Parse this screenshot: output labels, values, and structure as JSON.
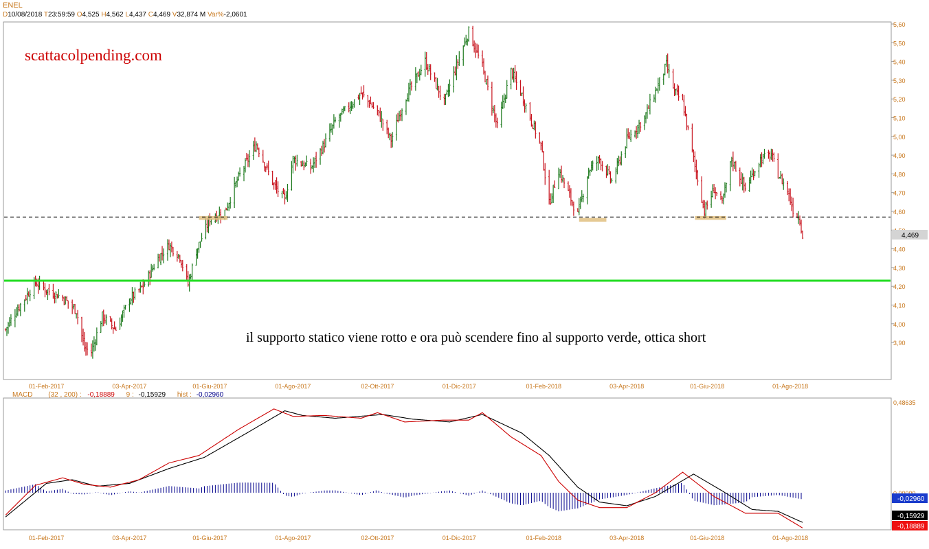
{
  "header": {
    "symbol": "ENEL",
    "d_label": "D",
    "date": "10/08/2018",
    "t_label": "T",
    "time": "23:59:59",
    "o_label": "O",
    "open": "4,525",
    "h_label": "H",
    "high": "4,562",
    "l_label": "L",
    "low": "4,437",
    "c_label": "C",
    "close": "4,469",
    "v_label": "V",
    "volume": "32,874 M",
    "var_label": "Var%",
    "var": "-2,0601"
  },
  "watermark": "scattacolpending.com",
  "annotation": "il supporto statico viene rotto e ora può scendere fino al supporto verde, ottica short",
  "price_badge": "4,469",
  "macd_header": {
    "name": "MACD",
    "params": "(32 , 200) :",
    "macd_value": "-0,18889",
    "signal_label": "9 :",
    "signal_value": "-0,15929",
    "hist_label": "hist :",
    "hist_value": "-0,02960"
  },
  "colors": {
    "up": "#1e7a1e",
    "down": "#c8141e",
    "support_green": "#22dd22",
    "support_box": "#e0c080",
    "macd_red": "#cc0000",
    "hist_blue": "#00008b",
    "axis_text": "#c8781e",
    "watermark": "#cc0000"
  },
  "chart_data": [
    {
      "type": "candlestick",
      "title": "ENEL",
      "x_tick_labels": [
        "01-Feb-2017",
        "03-Apr-2017",
        "01-Giu-2017",
        "01-Ago-2017",
        "02-Ott-2017",
        "01-Dic-2017",
        "01-Feb-2018",
        "03-Apr-2018",
        "01-Giu-2018",
        "01-Ago-2018"
      ],
      "y_tick_labels": [
        "3,90",
        "4,00",
        "4,10",
        "4,20",
        "4,30",
        "4,40",
        "4,50",
        "4,60",
        "4,70",
        "4,80",
        "4,90",
        "5,00",
        "5,10",
        "5,20",
        "5,30",
        "5,40",
        "5,50",
        "5,60"
      ],
      "ylim": [
        3.78,
        5.62
      ],
      "grid": false,
      "last_close": 4.469,
      "close_path": [
        {
          "date": "2017-01-02",
          "close": 3.97
        },
        {
          "date": "2017-01-10",
          "close": 4.07
        },
        {
          "date": "2017-01-24",
          "close": 4.22
        },
        {
          "date": "2017-02-01",
          "close": 4.18
        },
        {
          "date": "2017-02-13",
          "close": 4.14
        },
        {
          "date": "2017-02-23",
          "close": 4.07
        },
        {
          "date": "2017-03-01",
          "close": 3.87
        },
        {
          "date": "2017-03-06",
          "close": 3.85
        },
        {
          "date": "2017-03-14",
          "close": 4.04
        },
        {
          "date": "2017-03-24",
          "close": 3.97
        },
        {
          "date": "2017-04-03",
          "close": 4.13
        },
        {
          "date": "2017-04-13",
          "close": 4.2
        },
        {
          "date": "2017-04-24",
          "close": 4.35
        },
        {
          "date": "2017-05-02",
          "close": 4.42
        },
        {
          "date": "2017-05-10",
          "close": 4.36
        },
        {
          "date": "2017-05-16",
          "close": 4.21
        },
        {
          "date": "2017-05-22",
          "close": 4.39
        },
        {
          "date": "2017-06-01",
          "close": 4.56
        },
        {
          "date": "2017-06-12",
          "close": 4.6
        },
        {
          "date": "2017-06-22",
          "close": 4.78
        },
        {
          "date": "2017-07-05",
          "close": 4.96
        },
        {
          "date": "2017-07-18",
          "close": 4.74
        },
        {
          "date": "2017-07-26",
          "close": 4.66
        },
        {
          "date": "2017-08-01",
          "close": 4.88
        },
        {
          "date": "2017-08-14",
          "close": 4.83
        },
        {
          "date": "2017-08-24",
          "close": 4.96
        },
        {
          "date": "2017-09-01",
          "close": 5.08
        },
        {
          "date": "2017-09-20",
          "close": 5.23
        },
        {
          "date": "2017-10-02",
          "close": 5.13
        },
        {
          "date": "2017-10-12",
          "close": 4.98
        },
        {
          "date": "2017-10-22",
          "close": 5.2
        },
        {
          "date": "2017-11-06",
          "close": 5.4
        },
        {
          "date": "2017-11-20",
          "close": 5.18
        },
        {
          "date": "2017-12-01",
          "close": 5.42
        },
        {
          "date": "2017-12-08",
          "close": 5.56
        },
        {
          "date": "2017-12-18",
          "close": 5.37
        },
        {
          "date": "2017-12-29",
          "close": 5.05
        },
        {
          "date": "2018-01-08",
          "close": 5.35
        },
        {
          "date": "2018-01-16",
          "close": 5.22
        },
        {
          "date": "2018-01-30",
          "close": 4.95
        },
        {
          "date": "2018-02-05",
          "close": 4.64
        },
        {
          "date": "2018-02-12",
          "close": 4.82
        },
        {
          "date": "2018-02-26",
          "close": 4.58
        },
        {
          "date": "2018-03-06",
          "close": 4.82
        },
        {
          "date": "2018-03-14",
          "close": 4.88
        },
        {
          "date": "2018-03-23",
          "close": 4.76
        },
        {
          "date": "2018-04-03",
          "close": 4.98
        },
        {
          "date": "2018-04-16",
          "close": 5.1
        },
        {
          "date": "2018-05-02",
          "close": 5.38
        },
        {
          "date": "2018-05-08",
          "close": 5.24
        },
        {
          "date": "2018-05-14",
          "close": 5.18
        },
        {
          "date": "2018-05-22",
          "close": 4.88
        },
        {
          "date": "2018-05-30",
          "close": 4.6
        },
        {
          "date": "2018-06-06",
          "close": 4.72
        },
        {
          "date": "2018-06-12",
          "close": 4.64
        },
        {
          "date": "2018-06-19",
          "close": 4.88
        },
        {
          "date": "2018-06-29",
          "close": 4.72
        },
        {
          "date": "2018-07-10",
          "close": 4.88
        },
        {
          "date": "2018-07-18",
          "close": 4.9
        },
        {
          "date": "2018-07-23",
          "close": 4.8
        },
        {
          "date": "2018-07-30",
          "close": 4.71
        },
        {
          "date": "2018-08-03",
          "close": 4.61
        },
        {
          "date": "2018-08-08",
          "close": 4.56
        },
        {
          "date": "2018-08-10",
          "close": 4.469
        }
      ],
      "lines": [
        {
          "label": "supporto statico",
          "style": "dashed",
          "y": 4.57
        },
        {
          "label": "supporto verde",
          "style": "solid",
          "y": 4.23
        }
      ],
      "support_boxes": [
        {
          "from": "2017-05-24",
          "to": "2017-06-14",
          "y_low": 4.555,
          "y_high": 4.575
        },
        {
          "from": "2018-02-27",
          "to": "2018-03-19",
          "y_low": 4.545,
          "y_high": 4.565
        },
        {
          "from": "2018-05-23",
          "to": "2018-06-15",
          "y_low": 4.555,
          "y_high": 4.575
        }
      ]
    },
    {
      "type": "line",
      "title": "MACD",
      "x_tick_labels": [
        "01-Feb-2017",
        "03-Apr-2017",
        "01-Giu-2017",
        "01-Ago-2017",
        "02-Ott-2017",
        "01-Dic-2017",
        "01-Feb-2018",
        "03-Apr-2018",
        "01-Giu-2018",
        "01-Ago-2018"
      ],
      "y_tick_labels": [
        "0,48635",
        "0,00000"
      ],
      "value_badges": [
        "-0,02960",
        "-0,15929",
        "-0,18889"
      ],
      "ylim": [
        -0.2,
        0.48635
      ],
      "series": [
        {
          "name": "MACD",
          "color": "red",
          "points": [
            {
              "date": "2017-01-02",
              "v": -0.12
            },
            {
              "date": "2017-01-24",
              "v": 0.04
            },
            {
              "date": "2017-02-13",
              "v": 0.08
            },
            {
              "date": "2017-03-01",
              "v": 0.045
            },
            {
              "date": "2017-03-20",
              "v": 0.03
            },
            {
              "date": "2017-04-10",
              "v": 0.07
            },
            {
              "date": "2017-05-02",
              "v": 0.16
            },
            {
              "date": "2017-05-24",
              "v": 0.2
            },
            {
              "date": "2017-06-22",
              "v": 0.34
            },
            {
              "date": "2017-07-18",
              "v": 0.45
            },
            {
              "date": "2017-08-01",
              "v": 0.41
            },
            {
              "date": "2017-08-24",
              "v": 0.415
            },
            {
              "date": "2017-09-20",
              "v": 0.4
            },
            {
              "date": "2017-10-02",
              "v": 0.43
            },
            {
              "date": "2017-10-22",
              "v": 0.38
            },
            {
              "date": "2017-11-20",
              "v": 0.39
            },
            {
              "date": "2017-12-08",
              "v": 0.39
            },
            {
              "date": "2017-12-18",
              "v": 0.43
            },
            {
              "date": "2018-01-08",
              "v": 0.3
            },
            {
              "date": "2018-01-30",
              "v": 0.2
            },
            {
              "date": "2018-02-12",
              "v": 0.06
            },
            {
              "date": "2018-02-26",
              "v": -0.04
            },
            {
              "date": "2018-03-14",
              "v": -0.08
            },
            {
              "date": "2018-04-03",
              "v": -0.08
            },
            {
              "date": "2018-04-24",
              "v": 0.0
            },
            {
              "date": "2018-05-14",
              "v": 0.11
            },
            {
              "date": "2018-06-06",
              "v": -0.02
            },
            {
              "date": "2018-06-29",
              "v": -0.11
            },
            {
              "date": "2018-07-23",
              "v": -0.11
            },
            {
              "date": "2018-08-10",
              "v": -0.18889
            }
          ]
        },
        {
          "name": "Signal",
          "color": "black",
          "points": [
            {
              "date": "2017-01-02",
              "v": -0.13
            },
            {
              "date": "2017-02-01",
              "v": 0.05
            },
            {
              "date": "2017-02-20",
              "v": 0.07
            },
            {
              "date": "2017-03-10",
              "v": 0.035
            },
            {
              "date": "2017-04-03",
              "v": 0.05
            },
            {
              "date": "2017-05-02",
              "v": 0.13
            },
            {
              "date": "2017-05-28",
              "v": 0.19
            },
            {
              "date": "2017-06-28",
              "v": 0.32
            },
            {
              "date": "2017-07-26",
              "v": 0.44
            },
            {
              "date": "2017-08-08",
              "v": 0.415
            },
            {
              "date": "2017-09-01",
              "v": 0.4
            },
            {
              "date": "2017-10-06",
              "v": 0.42
            },
            {
              "date": "2017-10-28",
              "v": 0.395
            },
            {
              "date": "2017-11-24",
              "v": 0.38
            },
            {
              "date": "2017-12-18",
              "v": 0.42
            },
            {
              "date": "2018-01-16",
              "v": 0.32
            },
            {
              "date": "2018-02-05",
              "v": 0.2
            },
            {
              "date": "2018-02-26",
              "v": 0.03
            },
            {
              "date": "2018-03-14",
              "v": -0.05
            },
            {
              "date": "2018-04-03",
              "v": -0.07
            },
            {
              "date": "2018-04-24",
              "v": -0.02
            },
            {
              "date": "2018-05-22",
              "v": 0.1
            },
            {
              "date": "2018-06-12",
              "v": 0.01
            },
            {
              "date": "2018-07-04",
              "v": -0.09
            },
            {
              "date": "2018-07-23",
              "v": -0.1
            },
            {
              "date": "2018-08-10",
              "v": -0.15929
            }
          ]
        },
        {
          "name": "hist",
          "color": "blue",
          "type": "histogram",
          "last": -0.0296
        }
      ]
    }
  ]
}
